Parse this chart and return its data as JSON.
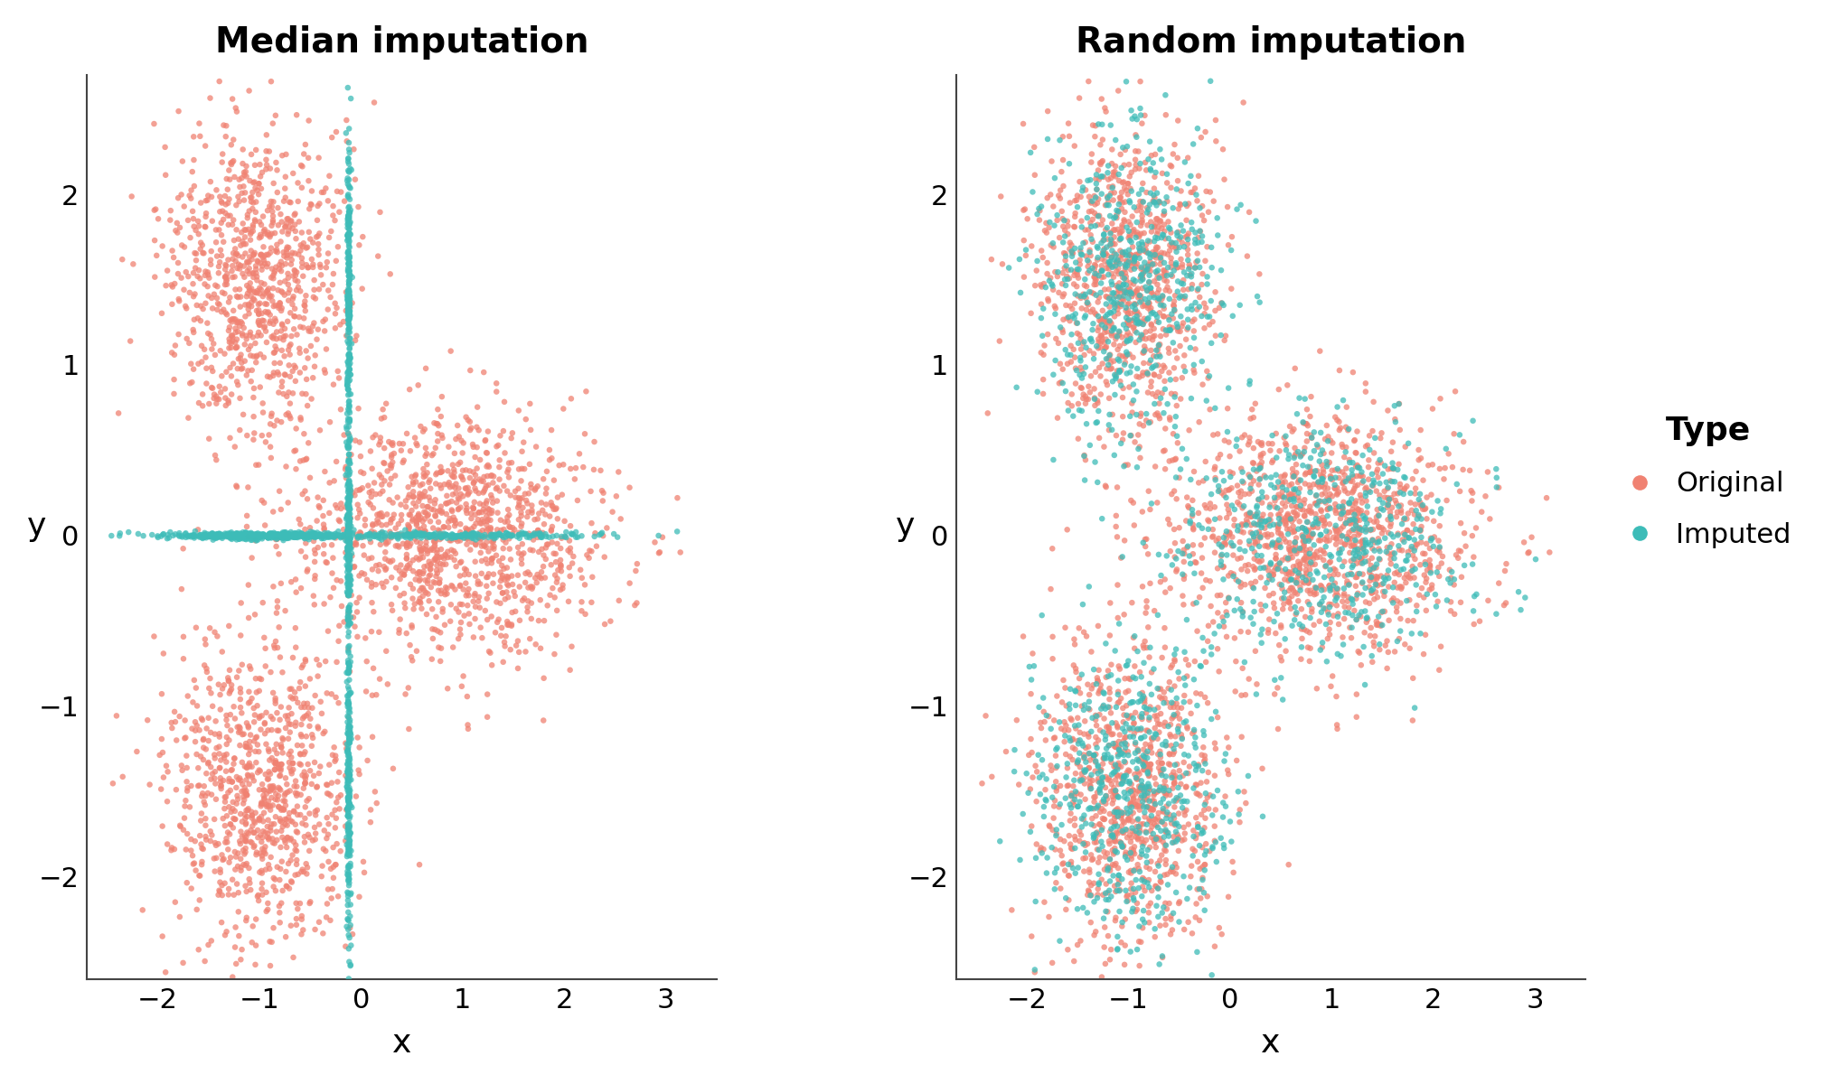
{
  "title_left": "Median imputation",
  "title_right": "Random imputation",
  "xlabel": "x",
  "ylabel": "y",
  "color_original": "#F08272",
  "color_imputed": "#3DBCB8",
  "xlim": [
    -2.7,
    3.5
  ],
  "ylim": [
    -2.6,
    2.7
  ],
  "xticks": [
    -2,
    -1,
    0,
    1,
    2,
    3
  ],
  "yticks": [
    -2,
    -1,
    0,
    1,
    2
  ],
  "legend_title": "Type",
  "legend_labels": [
    "Original",
    "Imputed"
  ],
  "marker_size": 22,
  "alpha": 0.75,
  "n_cluster1": 900,
  "n_cluster2": 900,
  "n_cluster3": 1200,
  "n_imputed_vert": 700,
  "n_imputed_horiz": 700,
  "n_imputed_rand": 1600,
  "seed": 7,
  "background_color": "#ffffff",
  "median_x": -0.12,
  "median_y": 0.0,
  "spine_color": "#444444"
}
